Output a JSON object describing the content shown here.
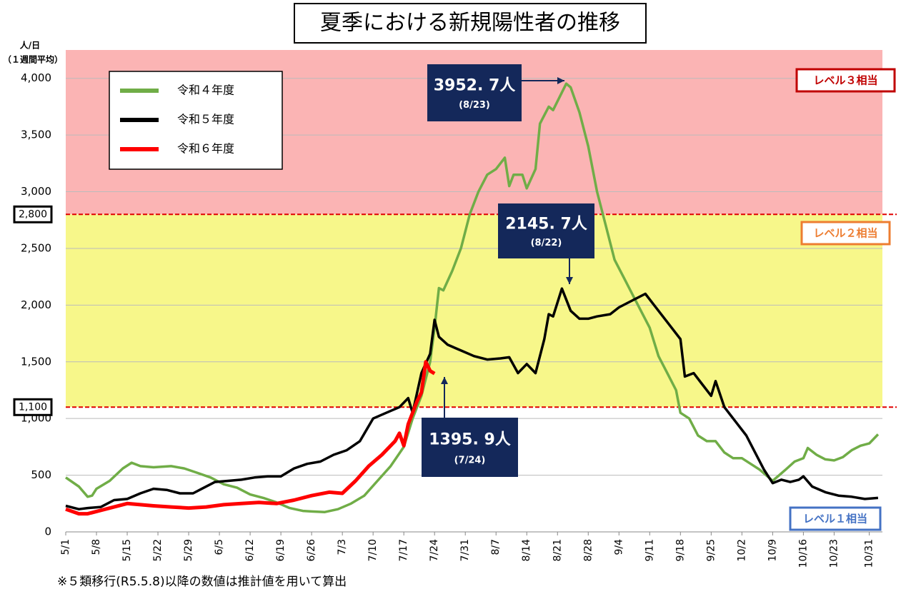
{
  "chart_data": {
    "type": "line",
    "title": "夏季における新規陽性者の推移",
    "y_label": "人/日",
    "y_sublabel": "（１週間平均）",
    "footnote": "※５類移行(R5.5.8)以降の数値は推計値を用いて算出",
    "xlim": [
      0,
      186
    ],
    "ylim": [
      0,
      4250
    ],
    "xticks": [
      {
        "value": 0,
        "label": "5/1"
      },
      {
        "value": 7,
        "label": "5/8"
      },
      {
        "value": 14,
        "label": "5/15"
      },
      {
        "value": 21,
        "label": "5/22"
      },
      {
        "value": 28,
        "label": "5/29"
      },
      {
        "value": 35,
        "label": "6/5"
      },
      {
        "value": 42,
        "label": "6/12"
      },
      {
        "value": 49,
        "label": "6/19"
      },
      {
        "value": 56,
        "label": "6/26"
      },
      {
        "value": 63,
        "label": "7/3"
      },
      {
        "value": 70,
        "label": "7/10"
      },
      {
        "value": 77,
        "label": "7/17"
      },
      {
        "value": 84,
        "label": "7/24"
      },
      {
        "value": 91,
        "label": "7/31"
      },
      {
        "value": 98,
        "label": "8/7"
      },
      {
        "value": 105,
        "label": "8/14"
      },
      {
        "value": 112,
        "label": "8/21"
      },
      {
        "value": 119,
        "label": "8/28"
      },
      {
        "value": 126,
        "label": "9/4"
      },
      {
        "value": 133,
        "label": "9/11"
      },
      {
        "value": 140,
        "label": "9/18"
      },
      {
        "value": 147,
        "label": "9/25"
      },
      {
        "value": 154,
        "label": "10/2"
      },
      {
        "value": 161,
        "label": "10/9"
      },
      {
        "value": 168,
        "label": "10/16"
      },
      {
        "value": 175,
        "label": "10/23"
      },
      {
        "value": 183,
        "label": "10/31"
      }
    ],
    "yticks": [
      0,
      500,
      {
        "value": 1000,
        "label": "1,000"
      },
      {
        "value": 1500,
        "label": "1,500"
      },
      {
        "value": 2000,
        "label": "2,000"
      },
      {
        "value": 2500,
        "label": "2,500"
      },
      {
        "value": 3000,
        "label": "3,000"
      },
      {
        "value": 3500,
        "label": "3,500"
      },
      {
        "value": 4000,
        "label": "4,000"
      }
    ],
    "levels": [
      {
        "value": 2800,
        "label": "2,800",
        "color": "#e00000"
      },
      {
        "value": 1100,
        "label": "1,100",
        "color": "#e00000"
      }
    ],
    "bands": [
      {
        "label": "レベル３相当",
        "color": "#fbb4b4",
        "border": "#c00000"
      },
      {
        "label": "レベル２相当",
        "color": "#f7f78a",
        "border": "#ed7d31"
      },
      {
        "label": "レベル１相当",
        "color": "#ffffff",
        "border": "#4472c4"
      }
    ],
    "series": [
      {
        "name": "令和４年度",
        "color": "#70ad47",
        "x": [
          0,
          3,
          5,
          6,
          7,
          10,
          13,
          15,
          17,
          20,
          24,
          27,
          30,
          33,
          36,
          39,
          42,
          45,
          48,
          51,
          54,
          56,
          59,
          62,
          65,
          68,
          71,
          74,
          77,
          79,
          81,
          83,
          84,
          85,
          86,
          88,
          90,
          92,
          94,
          96,
          98,
          100,
          101,
          102,
          104,
          105,
          107,
          108,
          110,
          111,
          114,
          115,
          117,
          119,
          121,
          123,
          125,
          127,
          129,
          131,
          133,
          135,
          137,
          139,
          140,
          142,
          144,
          146,
          148,
          150,
          152,
          154,
          156,
          158,
          161,
          164,
          166,
          168,
          169,
          171,
          173,
          175,
          177,
          179,
          181,
          183,
          185
        ],
        "values": [
          480,
          400,
          310,
          320,
          380,
          450,
          560,
          610,
          580,
          570,
          580,
          560,
          520,
          480,
          420,
          390,
          330,
          300,
          260,
          210,
          185,
          180,
          175,
          200,
          250,
          320,
          450,
          580,
          750,
          1000,
          1200,
          1500,
          1800,
          2150,
          2130,
          2300,
          2500,
          2800,
          3000,
          3150,
          3200,
          3300,
          3050,
          3150,
          3150,
          3030,
          3200,
          3600,
          3750,
          3720,
          3952.7,
          3920,
          3700,
          3400,
          3000,
          2700,
          2400,
          2250,
          2100,
          1950,
          1800,
          1550,
          1400,
          1250,
          1050,
          1000,
          850,
          800,
          800,
          700,
          650,
          650,
          600,
          550,
          450,
          550,
          620,
          650,
          740,
          680,
          640,
          630,
          660,
          720,
          760,
          780,
          860
        ]
      },
      {
        "name": "令和５年度",
        "color": "#000000",
        "x": [
          0,
          3,
          5,
          8,
          11,
          14,
          17,
          20,
          23,
          26,
          29,
          31,
          34,
          37,
          40,
          43,
          46,
          49,
          52,
          55,
          58,
          61,
          64,
          67,
          70,
          73,
          76,
          78,
          79,
          81,
          83,
          84,
          85,
          87,
          90,
          93,
          96,
          99,
          101,
          103,
          105,
          107,
          109,
          110,
          111,
          113,
          115,
          117,
          119,
          121,
          124,
          126,
          129,
          132,
          134,
          136,
          138,
          140,
          141,
          143,
          145,
          147,
          148,
          150,
          153,
          155,
          157,
          159,
          161,
          163,
          165,
          167,
          168,
          170,
          173,
          176,
          179,
          182,
          185
        ],
        "values": [
          230,
          200,
          210,
          220,
          280,
          290,
          340,
          380,
          370,
          340,
          340,
          380,
          440,
          450,
          460,
          480,
          490,
          490,
          560,
          600,
          620,
          680,
          720,
          800,
          1000,
          1050,
          1100,
          1180,
          1050,
          1400,
          1570,
          1870,
          1720,
          1650,
          1600,
          1550,
          1520,
          1530,
          1540,
          1400,
          1480,
          1400,
          1700,
          1920,
          1900,
          2145.7,
          1950,
          1880,
          1880,
          1900,
          1920,
          1980,
          2040,
          2100,
          2000,
          1900,
          1800,
          1700,
          1370,
          1400,
          1300,
          1200,
          1330,
          1100,
          950,
          850,
          700,
          550,
          430,
          460,
          440,
          460,
          490,
          400,
          350,
          320,
          310,
          290,
          300
        ]
      },
      {
        "name": "令和６年度",
        "color": "#ff0000",
        "x": [
          0,
          3,
          5,
          8,
          11,
          14,
          17,
          20,
          24,
          28,
          32,
          36,
          40,
          44,
          48,
          52,
          56,
          60,
          63,
          66,
          69,
          72,
          75,
          76,
          77,
          78,
          80,
          81,
          82,
          83,
          84
        ],
        "values": [
          200,
          160,
          160,
          190,
          220,
          250,
          240,
          230,
          220,
          210,
          220,
          240,
          250,
          260,
          250,
          280,
          320,
          350,
          340,
          450,
          580,
          680,
          800,
          870,
          760,
          950,
          1150,
          1230,
          1500,
          1420,
          1395.9
        ]
      }
    ],
    "annotations": [
      {
        "text": "3952. 7人",
        "date": "(8/23)"
      },
      {
        "text": "2145. 7人",
        "date": "(8/22)"
      },
      {
        "text": "1395. 9人",
        "date": "(7/24)"
      }
    ]
  }
}
